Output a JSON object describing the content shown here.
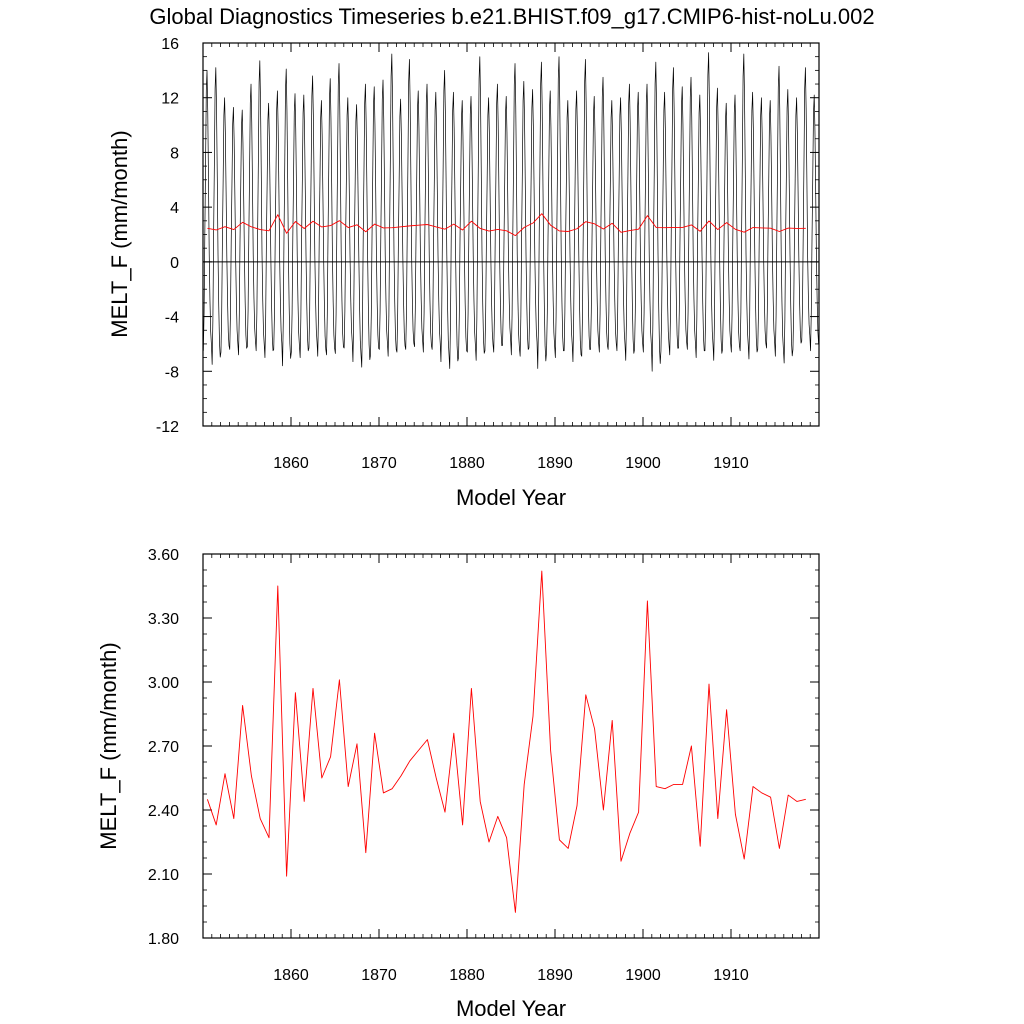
{
  "title": "Global Diagnostics Timeseries b.e21.BHIST.f09_g17.CMIP6-hist-noLu.002",
  "chart_data": [
    {
      "type": "line",
      "title": "Global Diagnostics Timeseries b.e21.BHIST.f09_g17.CMIP6-hist-noLu.002",
      "xlabel": "Model Year",
      "ylabel": "MELT_F (mm/month)",
      "xlim": [
        1850,
        1920
      ],
      "ylim": [
        -12,
        16
      ],
      "xticks": [
        1860,
        1870,
        1880,
        1890,
        1900,
        1910
      ],
      "yticks": [
        -12,
        -8,
        -4,
        0,
        4,
        8,
        12,
        16
      ],
      "ytick_labels": [
        "-12",
        "-8",
        "-4",
        "0",
        "4",
        "8",
        "12",
        "16"
      ],
      "zero_line": 0,
      "series": [
        {
          "style": "monthly",
          "color": "#000000",
          "x_start": 1850.04,
          "x_step": 0.083333,
          "cycle_shape": [
            -7.0,
            -4.0,
            2.0,
            7.0,
            12.5,
            14.0,
            11.0,
            6.0,
            0.5,
            -3.0,
            -5.5,
            -6.5
          ],
          "annual_peak": [
            14.0,
            14.2,
            12.0,
            11.3,
            11.1,
            13.0,
            14.7,
            11.6,
            12.5,
            14.1,
            12.3,
            12.2,
            13.6,
            11.8,
            13.4,
            14.5,
            12.0,
            11.5,
            13.0,
            12.8,
            13.3,
            15.2,
            11.9,
            14.8,
            12.5,
            13.0,
            12.4,
            14.0,
            12.4,
            11.8,
            12.1,
            15.0,
            12.0,
            13.0,
            12.1,
            14.5,
            13.2,
            12.6,
            14.6,
            12.5,
            15.0,
            11.8,
            12.5,
            14.8,
            12.1,
            13.5,
            11.8,
            12.0,
            13.0,
            12.4,
            13.0,
            14.6,
            12.4,
            14.2,
            12.8,
            13.5,
            12.2,
            15.3,
            12.7,
            11.6,
            12.2,
            15.2,
            12.4,
            12.0,
            11.8,
            14.3,
            12.6,
            12.0,
            14.2,
            12.2
          ],
          "annual_trough": [
            -6.5,
            -7.5,
            -6.6,
            -6.4,
            -6.8,
            -6.2,
            -6.5,
            -7.0,
            -6.4,
            -7.6,
            -6.6,
            -7.0,
            -6.3,
            -6.9,
            -6.8,
            -6.7,
            -6.3,
            -7.3,
            -7.7,
            -6.8,
            -6.4,
            -6.9,
            -6.6,
            -6.4,
            -6.2,
            -6.6,
            -6.4,
            -7.3,
            -7.8,
            -7.0,
            -6.6,
            -7.2,
            -6.5,
            -6.6,
            -6.1,
            -6.8,
            -6.9,
            -6.3,
            -7.8,
            -6.6,
            -7.0,
            -6.5,
            -7.3,
            -6.9,
            -6.4,
            -6.6,
            -6.4,
            -6.5,
            -7.2,
            -6.4,
            -6.6,
            -8.0,
            -6.5,
            -6.8,
            -6.3,
            -6.4,
            -7.0,
            -6.5,
            -7.2,
            -6.4,
            -6.6,
            -6.5,
            -7.1,
            -6.4,
            -6.3,
            -6.9,
            -7.4,
            -6.4,
            -5.8,
            -6.5
          ]
        },
        {
          "style": "annual",
          "color": "#ff0000",
          "x_start": 1850.5,
          "x_step": 1,
          "values": [
            2.45,
            2.33,
            2.57,
            2.36,
            2.89,
            2.56,
            2.36,
            2.27,
            3.45,
            2.09,
            2.95,
            2.44,
            2.97,
            2.55,
            2.65,
            3.01,
            2.51,
            2.71,
            2.2,
            2.76,
            2.48,
            2.5,
            2.56,
            2.63,
            2.68,
            2.73,
            2.55,
            2.39,
            2.76,
            2.33,
            2.97,
            2.44,
            2.25,
            2.37,
            2.27,
            1.92,
            2.52,
            2.84,
            3.52,
            2.68,
            2.26,
            2.22,
            2.42,
            2.94,
            2.78,
            2.4,
            2.82,
            2.16,
            2.29,
            2.39,
            3.38,
            2.51,
            2.5,
            2.52,
            2.52,
            2.7,
            2.23,
            2.99,
            2.36,
            2.87,
            2.38,
            2.17,
            2.51,
            2.48,
            2.46,
            2.22,
            2.47,
            2.44,
            2.45
          ]
        }
      ]
    },
    {
      "type": "line",
      "xlabel": "Model Year",
      "ylabel": "MELT_F (mm/month)",
      "xlim": [
        1850,
        1920
      ],
      "ylim": [
        1.8,
        3.6
      ],
      "xticks": [
        1860,
        1870,
        1880,
        1890,
        1900,
        1910
      ],
      "yticks": [
        1.8,
        2.1,
        2.4,
        2.7,
        3.0,
        3.3,
        3.6
      ],
      "ytick_labels": [
        "1.80",
        "2.10",
        "2.40",
        "2.70",
        "3.00",
        "3.30",
        "3.60"
      ],
      "series": [
        {
          "style": "annual",
          "color": "#ff0000",
          "x_start": 1850.5,
          "x_step": 1,
          "values": [
            2.45,
            2.33,
            2.57,
            2.36,
            2.89,
            2.56,
            2.36,
            2.27,
            3.45,
            2.09,
            2.95,
            2.44,
            2.97,
            2.55,
            2.65,
            3.01,
            2.51,
            2.71,
            2.2,
            2.76,
            2.48,
            2.5,
            2.56,
            2.63,
            2.68,
            2.73,
            2.55,
            2.39,
            2.76,
            2.33,
            2.97,
            2.44,
            2.25,
            2.37,
            2.27,
            1.92,
            2.52,
            2.84,
            3.52,
            2.68,
            2.26,
            2.22,
            2.42,
            2.94,
            2.78,
            2.4,
            2.82,
            2.16,
            2.29,
            2.39,
            3.38,
            2.51,
            2.5,
            2.52,
            2.52,
            2.7,
            2.23,
            2.99,
            2.36,
            2.87,
            2.38,
            2.17,
            2.51,
            2.48,
            2.46,
            2.22,
            2.47,
            2.44,
            2.45
          ]
        }
      ]
    }
  ]
}
